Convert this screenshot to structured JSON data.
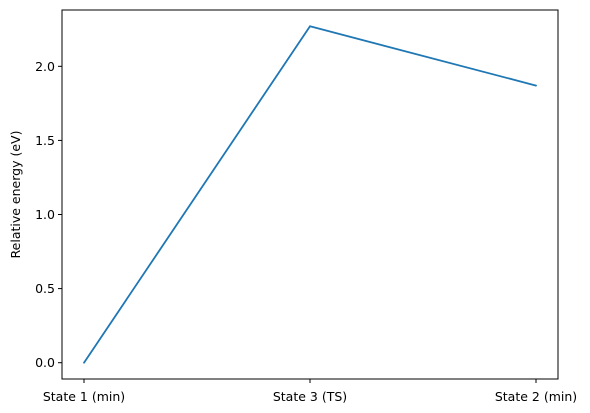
{
  "chart_data": {
    "type": "line",
    "title": "",
    "xlabel": "",
    "ylabel": "Relative energy (eV)",
    "categories": [
      "State 1 (min)",
      "State 3 (TS)",
      "State 2 (min)"
    ],
    "series": [
      {
        "values": [
          0.0,
          2.27,
          1.87
        ],
        "color": "#1f77b4"
      }
    ],
    "ylim": [
      -0.11,
      2.38
    ],
    "yticks": [
      0.0,
      0.5,
      1.0,
      1.5,
      2.0
    ],
    "ytick_labels": [
      "0.0",
      "0.5",
      "1.0",
      "1.5",
      "2.0"
    ],
    "grid": false,
    "legend": "none"
  }
}
